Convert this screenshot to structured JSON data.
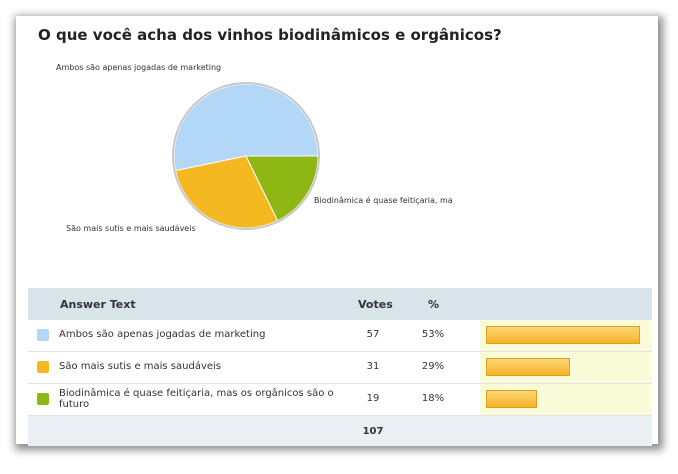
{
  "chart_data": {
    "type": "pie",
    "title": "O que você acha dos vinhos biodinâmicos e orgânicos?",
    "categories": [
      "Ambos são apenas jogadas de marketing",
      "São mais sutis e mais saudáveis",
      "Biodinâmica é quase feitiçaria, mas os orgânicos são o futuro"
    ],
    "slice_labels": [
      "Ambos são apenas jogadas de marketing",
      "São mais sutis e mais saudáveis",
      "Biodinâmica é quase feitiçaria, ma"
    ],
    "values": [
      57,
      31,
      19
    ],
    "percents": [
      "53%",
      "29%",
      "18%"
    ],
    "colors": [
      "#b3d7f7",
      "#f4b920",
      "#8fb714"
    ],
    "total": "107"
  },
  "table": {
    "header": {
      "answer": "Answer Text",
      "votes": "Votes",
      "pct": "%"
    }
  }
}
